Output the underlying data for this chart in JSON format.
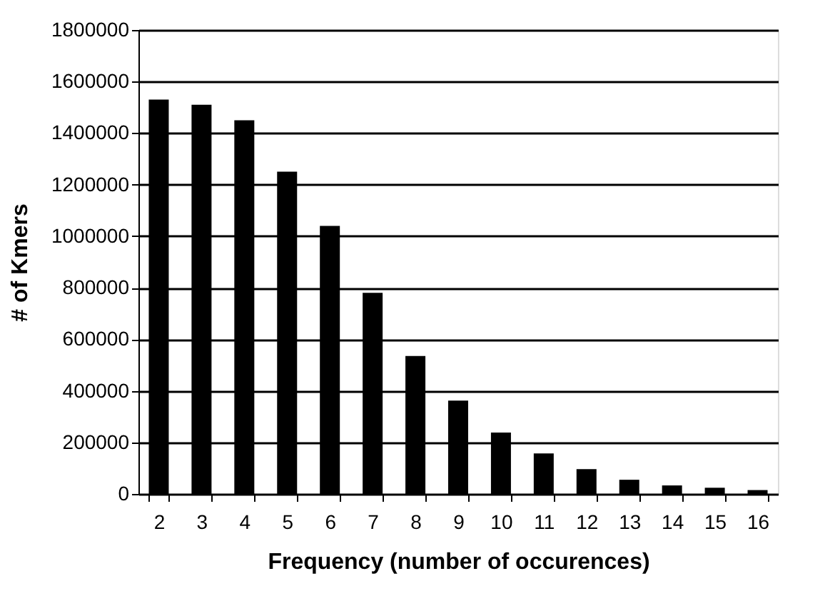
{
  "chart_data": {
    "type": "bar",
    "xlabel": "Frequency (number of occurences)",
    "ylabel": "# of Kmers",
    "categories": [
      "2",
      "3",
      "4",
      "5",
      "6",
      "7",
      "8",
      "9",
      "10",
      "11",
      "12",
      "13",
      "14",
      "15",
      "16"
    ],
    "values": [
      1530000,
      1510000,
      1450000,
      1250000,
      1040000,
      780000,
      535000,
      362000,
      238000,
      157000,
      96000,
      55000,
      33000,
      24000,
      15000
    ],
    "color": "#000000",
    "ylim": [
      0,
      1800000
    ],
    "yticks": [
      0,
      200000,
      400000,
      600000,
      800000,
      1000000,
      1200000,
      1400000,
      1600000,
      1800000
    ],
    "grid": "y"
  }
}
